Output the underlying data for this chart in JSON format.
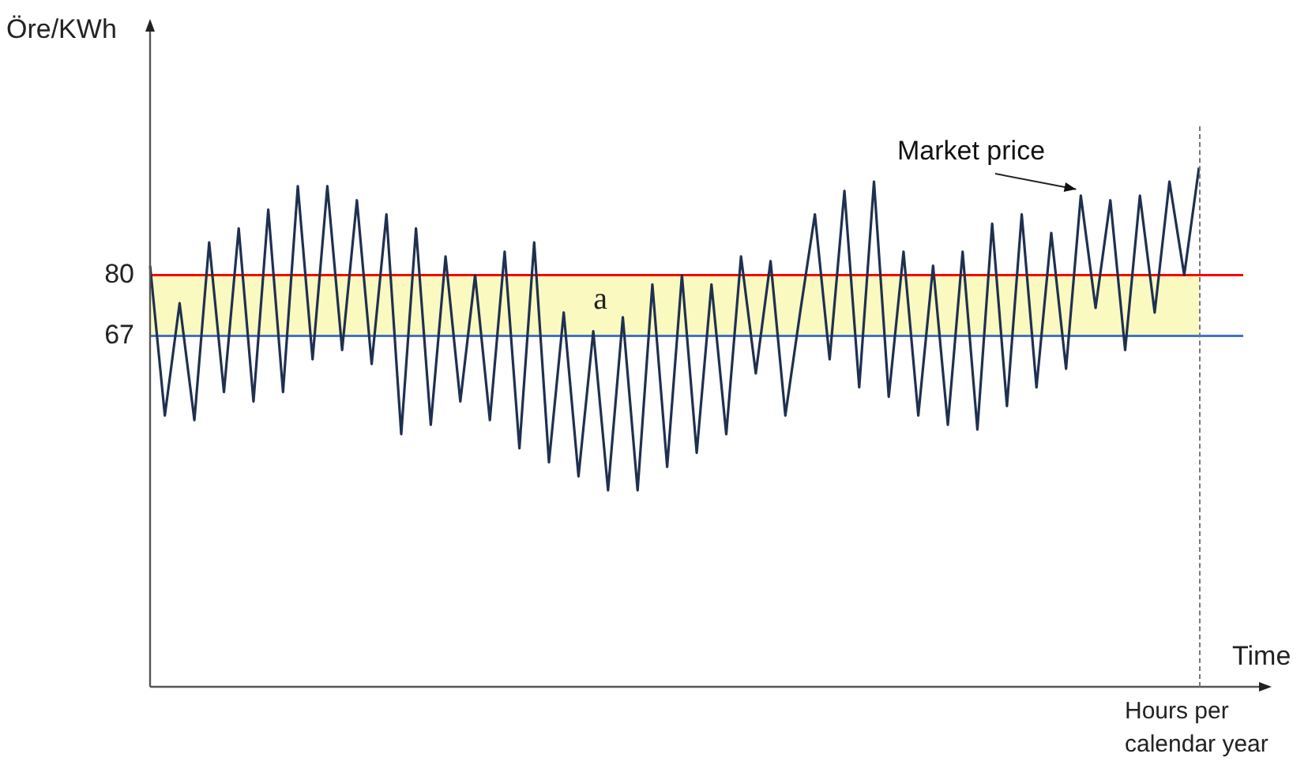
{
  "chart_data": {
    "type": "line",
    "xlabel": "Time",
    "ylabel": "Öre/KWh",
    "categories": [
      null,
      null,
      null,
      null,
      null,
      null,
      null,
      null,
      null,
      null,
      null,
      null,
      null,
      null,
      null,
      null,
      null,
      null,
      null,
      null,
      null,
      null,
      null,
      null,
      null,
      null,
      null,
      null,
      null,
      null,
      null,
      null,
      null,
      null,
      null,
      null,
      null,
      null,
      null,
      null,
      null,
      null,
      null,
      null,
      null,
      null,
      null,
      null,
      null,
      null,
      null,
      null,
      null,
      null,
      null,
      null,
      null,
      null,
      null,
      null,
      null,
      null,
      null,
      null,
      null,
      null,
      null,
      null,
      null,
      null,
      null,
      null
    ],
    "series": [
      {
        "name": "Market price",
        "color": "#1f3050",
        "values": [
          82,
          50,
          74,
          49,
          87,
          55,
          90,
          53,
          94,
          55,
          99,
          62,
          99,
          64,
          96,
          61,
          93,
          46,
          90,
          48,
          84,
          53,
          80,
          49,
          85,
          43,
          87,
          40,
          72,
          37,
          68,
          34,
          71,
          34,
          78,
          39,
          80,
          42,
          78,
          46,
          84,
          59,
          83,
          50,
          72,
          93,
          62,
          98,
          56,
          100,
          54,
          85,
          50,
          82,
          48,
          85,
          47,
          91,
          52,
          93,
          56,
          89,
          60,
          97,
          73,
          96,
          64,
          97,
          72,
          100,
          80,
          103
        ]
      }
    ],
    "ylim": [
      -8,
      132
    ],
    "yticks": [
      67,
      80
    ],
    "grid": false,
    "legend": false,
    "marker": "none",
    "line_style": "solid",
    "bands": [
      {
        "axis": "y",
        "from": 67,
        "to": 80,
        "label": "a",
        "color": "#fafac0"
      }
    ],
    "ref_lines": [
      {
        "axis": "y",
        "value": 80,
        "color": "#ff0000"
      },
      {
        "axis": "y",
        "value": 67,
        "color": "#4472c4"
      }
    ],
    "annotations": [
      "Hours per calendar year"
    ]
  }
}
